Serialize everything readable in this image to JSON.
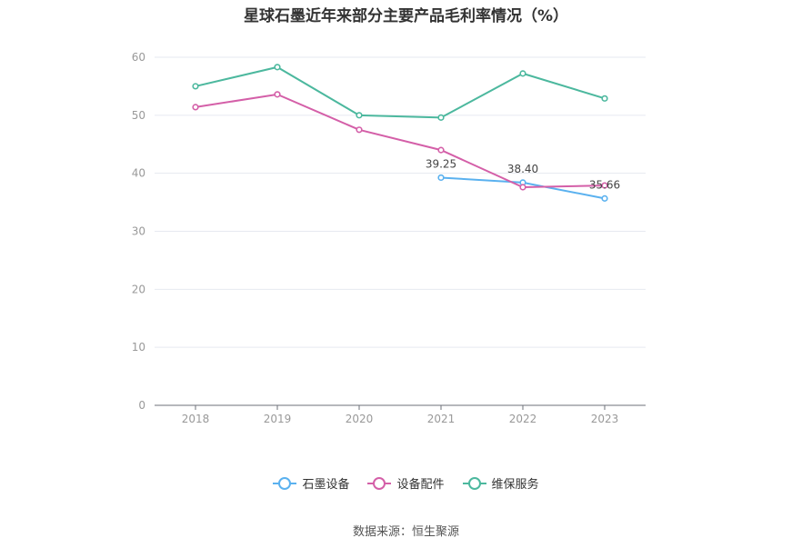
{
  "chart_data": {
    "type": "line",
    "title": "星球石墨近年来部分主要产品毛利率情况（%）",
    "categories": [
      "2018",
      "2019",
      "2020",
      "2021",
      "2022",
      "2023"
    ],
    "ylim": [
      0,
      60
    ],
    "yticks": [
      "0",
      "10",
      "20",
      "30",
      "40",
      "50",
      "60"
    ],
    "grid": true,
    "legend_position": "bottom",
    "series": [
      {
        "name": "石墨设备",
        "color": "#5ab1ef",
        "values": [
          null,
          null,
          null,
          39.25,
          38.4,
          35.66
        ],
        "labels": [
          null,
          null,
          null,
          "39.25",
          "38.40",
          "35.66"
        ]
      },
      {
        "name": "设备配件",
        "color": "#d45fa8",
        "values": [
          51.4,
          53.6,
          47.5,
          44.0,
          37.6,
          37.9
        ],
        "labels": [
          null,
          null,
          null,
          null,
          null,
          null
        ]
      },
      {
        "name": "维保服务",
        "color": "#4cb89e",
        "values": [
          55.0,
          58.3,
          50.0,
          49.6,
          57.2,
          52.9
        ],
        "labels": [
          null,
          null,
          null,
          null,
          null,
          null
        ]
      }
    ]
  },
  "source": "数据来源：恒生聚源"
}
